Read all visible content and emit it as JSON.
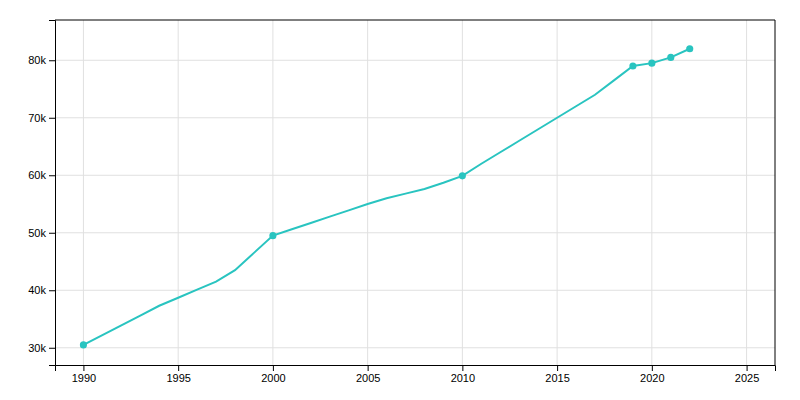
{
  "chart_data": {
    "type": "line",
    "series": [
      {
        "type": "line",
        "color": "#29c4c0",
        "x": [
          1990,
          1991,
          1992,
          1993,
          1994,
          1995,
          1996,
          1997,
          1998,
          1999,
          2000,
          2001,
          2002,
          2003,
          2004,
          2005,
          2006,
          2007,
          2008,
          2009,
          2010,
          2011,
          2012,
          2013,
          2014,
          2015,
          2016,
          2017,
          2018,
          2019,
          2020,
          2021,
          2022
        ],
        "values": [
          30500,
          32200,
          33900,
          35600,
          37300,
          38700,
          40100,
          41500,
          43500,
          46500,
          49500,
          50600,
          51700,
          52800,
          53900,
          55000,
          56000,
          56800,
          57600,
          58700,
          59900,
          62000,
          64000,
          66000,
          68000,
          70000,
          72000,
          74000,
          76500,
          79000,
          79500,
          80500,
          82000
        ]
      },
      {
        "type": "scatter",
        "marker": "circle",
        "color": "#29c4c0",
        "x": [
          1990,
          2000,
          2010,
          2019,
          2020,
          2021,
          2022
        ],
        "values": [
          30500,
          49500,
          59900,
          79000,
          79500,
          80500,
          82000
        ]
      }
    ],
    "xlim": [
      1988.5,
      2026.5
    ],
    "ylim": [
      27000,
      87000
    ],
    "xticks": [
      1990,
      1995,
      2000,
      2005,
      2010,
      2015,
      2020,
      2025
    ],
    "yticks": [
      {
        "value": 30000,
        "label": "30k"
      },
      {
        "value": 40000,
        "label": "40k"
      },
      {
        "value": 50000,
        "label": "50k"
      },
      {
        "value": 60000,
        "label": "60k"
      },
      {
        "value": 70000,
        "label": "70k"
      },
      {
        "value": 80000,
        "label": "80k"
      }
    ],
    "grid": true
  }
}
